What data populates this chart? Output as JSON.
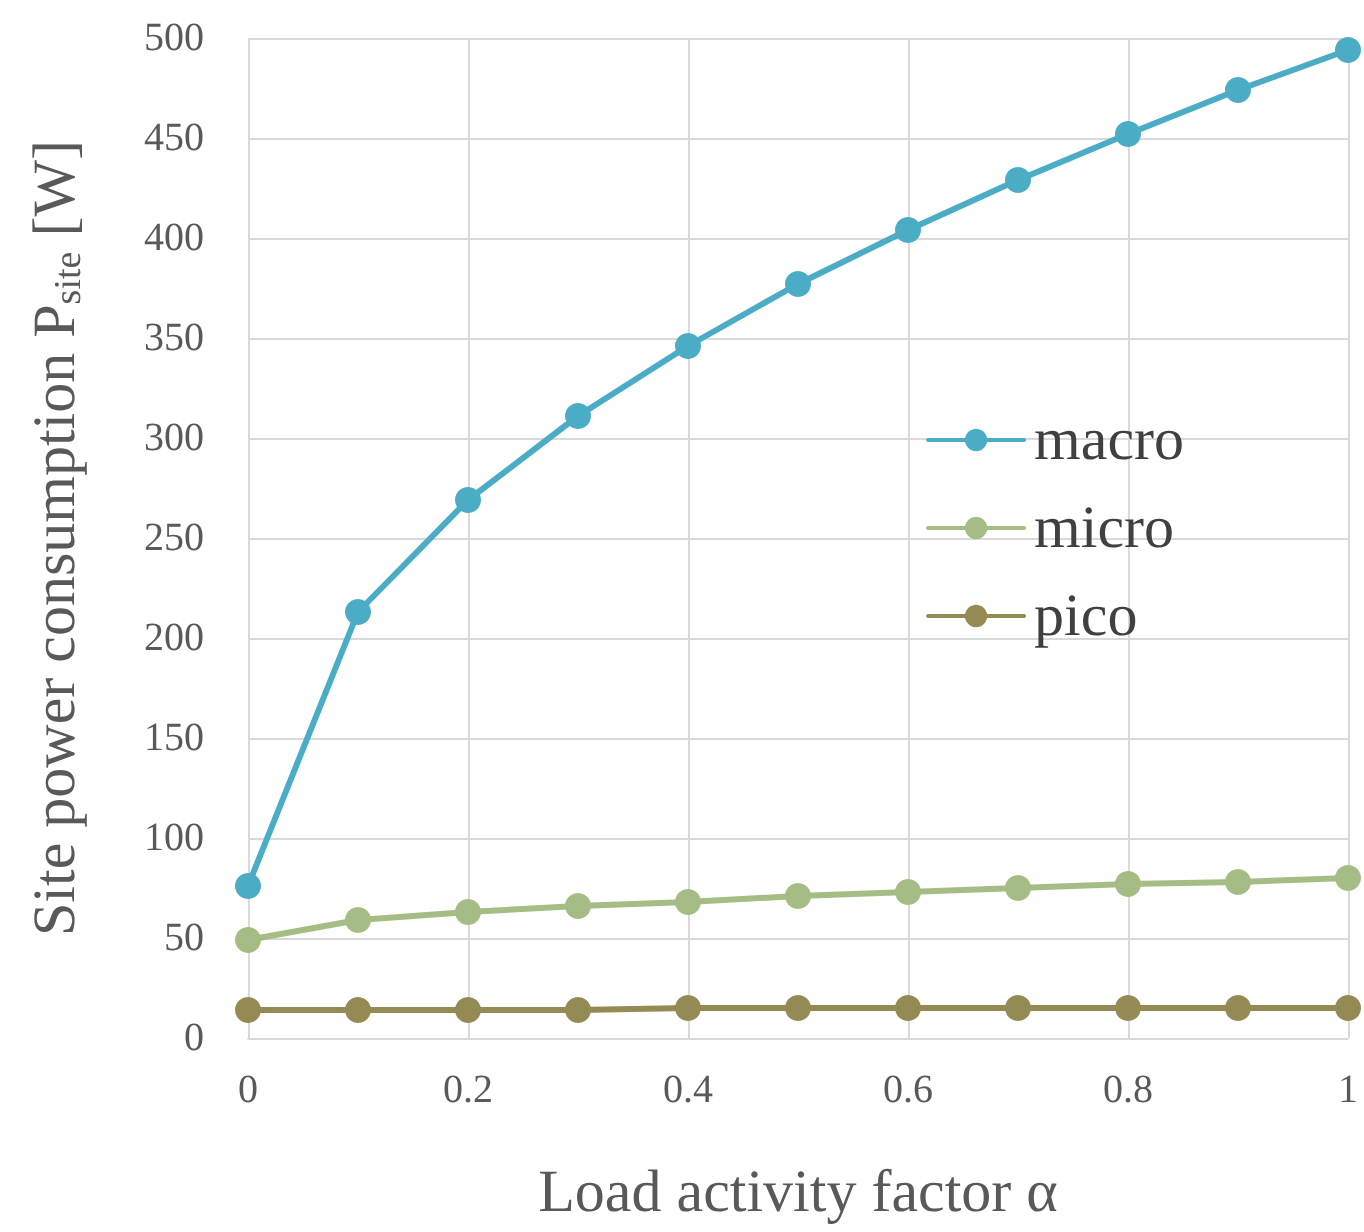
{
  "chart_data": {
    "type": "line",
    "xlabel": "Load activity factor α",
    "ylabel": "Site power consumption P$_{site}$ [W]",
    "x": [
      0,
      0.1,
      0.2,
      0.3,
      0.4,
      0.5,
      0.6,
      0.7,
      0.8,
      0.9,
      1
    ],
    "series": [
      {
        "name": "macro",
        "color": "#4bacc6",
        "values": [
          76,
          213,
          269,
          311,
          346,
          377,
          404,
          429,
          452,
          474,
          494
        ]
      },
      {
        "name": "micro",
        "color": "#a5bd84",
        "values": [
          49,
          59,
          63,
          66,
          68,
          71,
          73,
          75,
          77,
          78,
          80
        ]
      },
      {
        "name": "pico",
        "color": "#948a54",
        "values": [
          14,
          14,
          14,
          14,
          15,
          15,
          15,
          15,
          15,
          15,
          15
        ]
      }
    ],
    "xlim": [
      0,
      1
    ],
    "xticks": [
      0,
      0.2,
      0.4,
      0.6,
      0.8,
      1
    ],
    "ylim": [
      0,
      500
    ],
    "yticks": [
      0,
      50,
      100,
      150,
      200,
      250,
      300,
      350,
      400,
      450,
      500
    ],
    "grid": true,
    "legend": "right",
    "marker": "circle",
    "line_style": "solid"
  }
}
